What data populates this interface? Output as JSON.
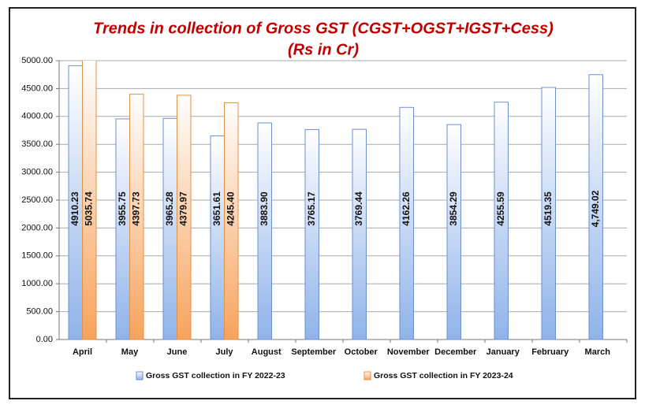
{
  "chart_data": {
    "type": "bar",
    "title": "Trends in collection of Gross GST (CGST+OGST+IGST+Cess)",
    "subtitle": "(Rs in Cr)",
    "categories": [
      "April",
      "May",
      "June",
      "July",
      "August",
      "September",
      "October",
      "November",
      "December",
      "January",
      "February",
      "March"
    ],
    "series": [
      {
        "name": "Gross GST collection in FY 2022-23",
        "color": "#8fb3ea",
        "values": [
          4910.23,
          3955.75,
          3965.28,
          3651.61,
          3883.9,
          3765.17,
          3769.44,
          4162.26,
          3854.29,
          4255.59,
          4519.35,
          4749.02
        ],
        "value_labels": [
          "4910.23",
          "3955.75",
          "3965.28",
          "3651.61",
          "3883.90",
          "3765.17",
          "3769.44",
          "4162.26",
          "3854.29",
          "4255.59",
          "4519.35",
          "4,749.02"
        ]
      },
      {
        "name": "Gross GST collection in FY 2023-24",
        "color": "#f7a35c",
        "values": [
          5035.74,
          4397.73,
          4379.97,
          4245.4,
          null,
          null,
          null,
          null,
          null,
          null,
          null,
          null
        ],
        "value_labels": [
          "5035.74",
          "4397.73",
          "4379.97",
          "4245.40",
          null,
          null,
          null,
          null,
          null,
          null,
          null,
          null
        ]
      }
    ],
    "ylim": [
      0,
      5000
    ],
    "yticks": [
      {
        "value": 0,
        "label": "0.00"
      },
      {
        "value": 500,
        "label": "500.00"
      },
      {
        "value": 1000,
        "label": "1000.00"
      },
      {
        "value": 1500,
        "label": "1500.00"
      },
      {
        "value": 2000,
        "label": "2000.00"
      },
      {
        "value": 2500,
        "label": "2500.00"
      },
      {
        "value": 3000,
        "label": "3000.00"
      },
      {
        "value": 3500,
        "label": "3500.00"
      },
      {
        "value": 4000,
        "label": "4000.00"
      },
      {
        "value": 4500,
        "label": "4500.00"
      },
      {
        "value": 5000,
        "label": "5000.00"
      }
    ],
    "grid": true
  }
}
